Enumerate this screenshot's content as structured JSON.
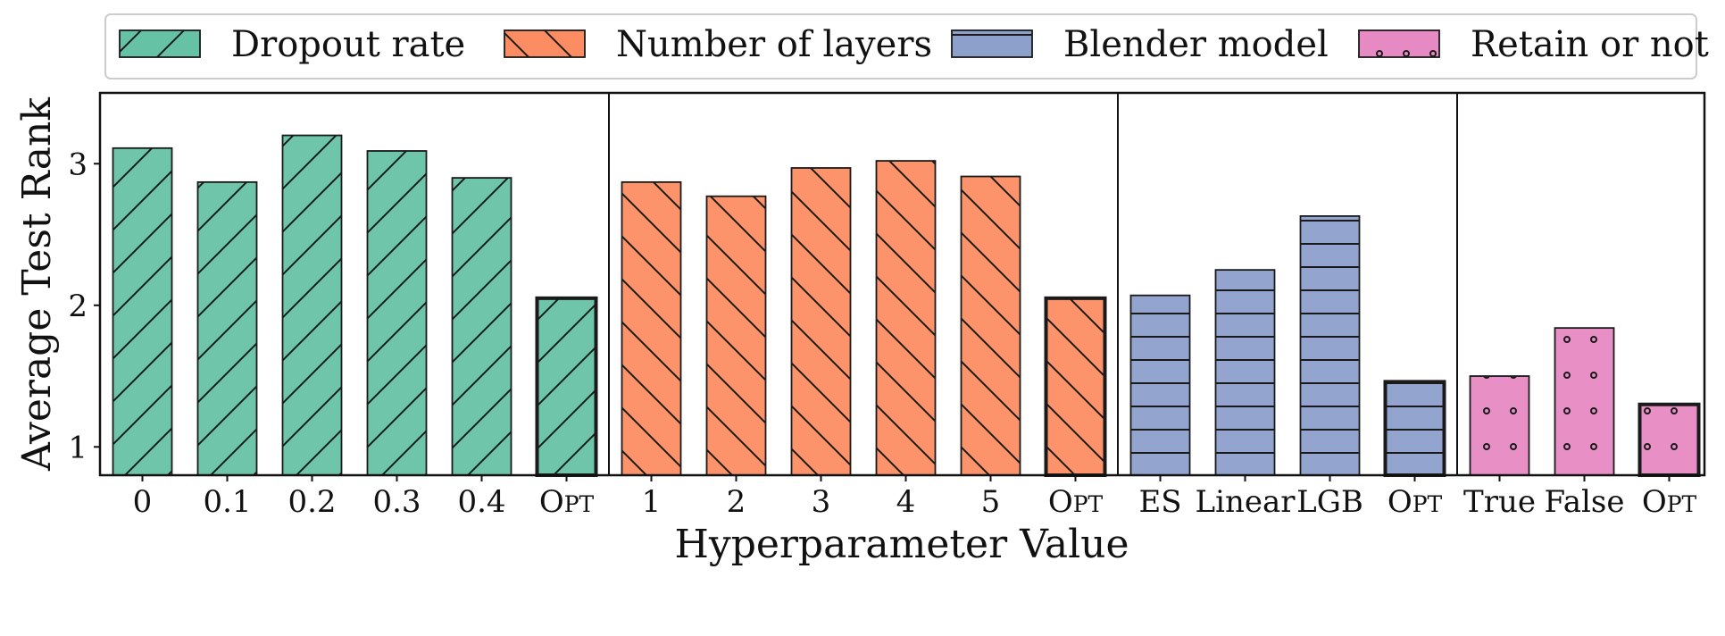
{
  "chart_data": {
    "type": "bar",
    "xlabel": "Hyperparameter Value",
    "ylabel": "Average Test Rank",
    "ylim": [
      0.8,
      3.5
    ],
    "yticks": [
      1,
      2,
      3
    ],
    "legend_position": "top",
    "grid": false,
    "groups": [
      {
        "name": "Dropout rate",
        "color": "#66c2a5",
        "hatch": "forward-diagonal",
        "categories": [
          "0",
          "0.1",
          "0.2",
          "0.3",
          "0.4",
          "OPT"
        ],
        "values": [
          3.11,
          2.87,
          3.2,
          3.09,
          2.9,
          2.05
        ]
      },
      {
        "name": "Number of layers",
        "color": "#fc8d62",
        "hatch": "back-diagonal",
        "categories": [
          "1",
          "2",
          "3",
          "4",
          "5",
          "OPT"
        ],
        "values": [
          2.87,
          2.77,
          2.97,
          3.02,
          2.91,
          2.05
        ]
      },
      {
        "name": "Blender model",
        "color": "#8da0cb",
        "hatch": "horizontal",
        "categories": [
          "ES",
          "Linear",
          "LGB",
          "OPT"
        ],
        "values": [
          2.07,
          2.25,
          2.63,
          1.46
        ]
      },
      {
        "name": "Retain or not",
        "color": "#e78ac3",
        "hatch": "dots",
        "categories": [
          "True",
          "False",
          "OPT"
        ],
        "values": [
          1.5,
          1.84,
          1.3
        ]
      }
    ]
  }
}
